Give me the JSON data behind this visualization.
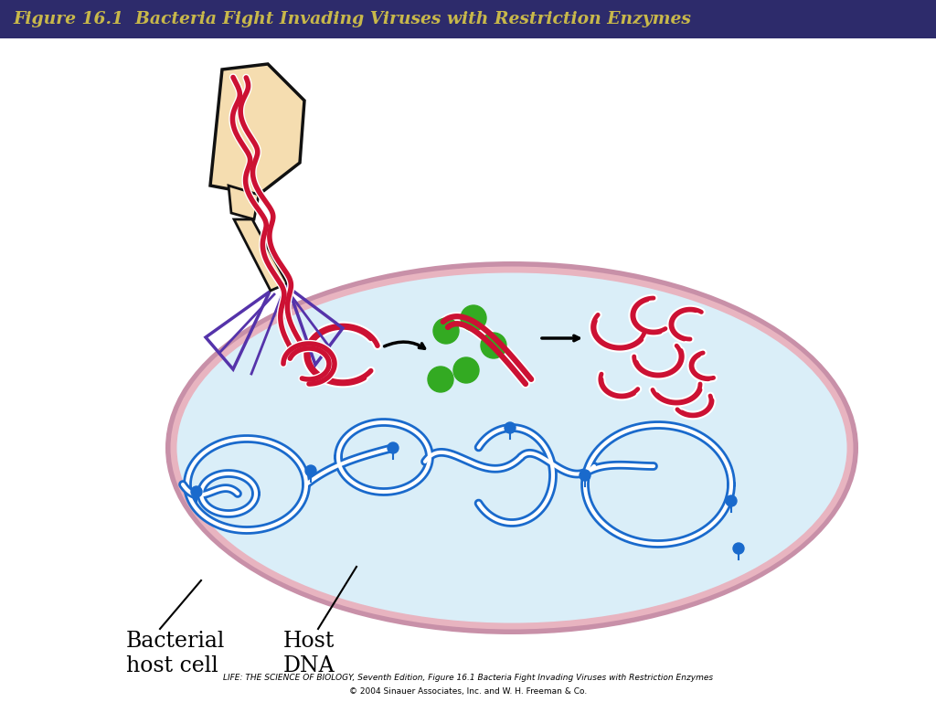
{
  "title": "Figure 16.1  Bacteria Fight Invading Viruses with Restriction Enzymes",
  "title_bg": "#2d2b6b",
  "title_color": "#c8b84a",
  "bg_color": "#ffffff",
  "cell_fill": "#daeef8",
  "cell_edge_inner": "#e8b4c0",
  "cell_edge_outer": "#c890a8",
  "label_bacterial": "Bacterial\nhost cell",
  "label_dna": "Host\nDNA",
  "footer1": "LIFE: THE SCIENCE OF BIOLOGY, Seventh Edition, Figure 16.1 Bacteria Fight Invading Viruses with Restriction Enzymes",
  "footer2": "© 2004 Sinauer Associates, Inc. and W. H. Freeman & Co.",
  "red_color": "#cc1133",
  "red_light": "#e85070",
  "blue_color": "#1a6acc",
  "blue_light": "#5599ee",
  "green_color": "#33aa22",
  "purple_color": "#5533aa",
  "phage_body_color": "#f5ddb0",
  "phage_outline": "#111111"
}
